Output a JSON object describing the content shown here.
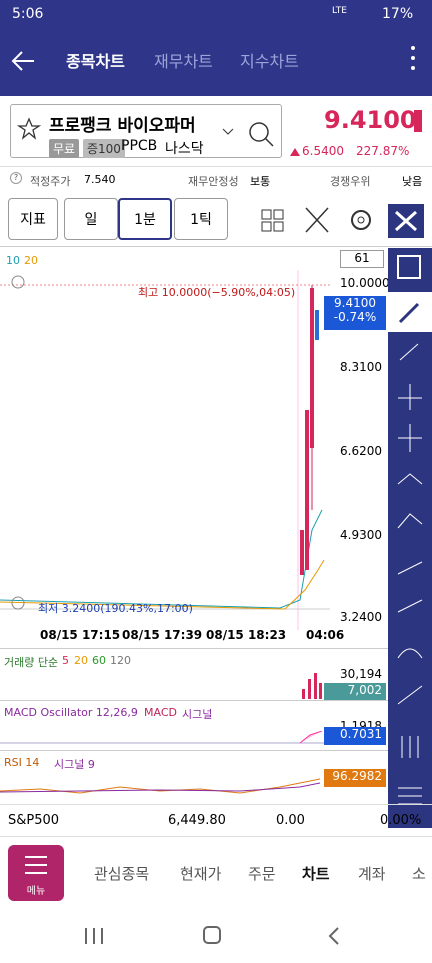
{
  "status_bar": {
    "time": "5:06",
    "network": "LTE",
    "battery": "17%"
  },
  "nav": {
    "tabs": [
      "종목차트",
      "재무차트",
      "지수차트"
    ]
  },
  "stock": {
    "name": "프로팽크 바이오파머",
    "tags": [
      "무료",
      "증100"
    ],
    "ticker": "PPCB",
    "market": "나스닥",
    "price": "9.4100",
    "change": "6.5400",
    "change_pct": "227.87%"
  },
  "metrics": [
    {
      "label": "적정주가",
      "value": "7.540"
    },
    {
      "label": "재무안정성",
      "value": "보통"
    },
    {
      "label": "경쟁우위",
      "value": "낮음"
    }
  ],
  "toolbar": {
    "indicator": "지표",
    "period": "일",
    "interval": "1분",
    "tick": "1틱"
  },
  "chart": {
    "ma_legend": [
      "10",
      "20"
    ],
    "count": "61",
    "price_axis": [
      "10.0000",
      "8.3100",
      "6.6200",
      "4.9300",
      "3.2400"
    ],
    "current_price": "9.4100",
    "current_change": "-0.74%",
    "high": "최고 10.0000(−5.90%,04:05)",
    "low": "최저 3.2400(190.43%,17:00)",
    "time_axis": [
      "08/15 17:15",
      "08/15 17:39",
      "08/15 18:23",
      "04:06"
    ]
  },
  "volume": {
    "title": "거래량 단순",
    "ma": [
      "5",
      "20",
      "60",
      "120"
    ],
    "axis_max": "30,194",
    "current": "7,002"
  },
  "macd": {
    "title": "MACD Oscillator 12,26,9",
    "macd": "MACD",
    "signal": "시그널",
    "axis_max": "1.1918",
    "current": "0.7031"
  },
  "rsi": {
    "title": "RSI 14",
    "signal": "시그널 9",
    "current": "96.2982"
  },
  "index_bar": {
    "name": "S&P500",
    "value": "6,449.80",
    "change": "0.00",
    "change_pct": "0.00%"
  },
  "bottom_nav": {
    "menu": "메뉴",
    "items": [
      "관심종목",
      "현재가",
      "주문",
      "차트",
      "계좌",
      "소"
    ]
  }
}
